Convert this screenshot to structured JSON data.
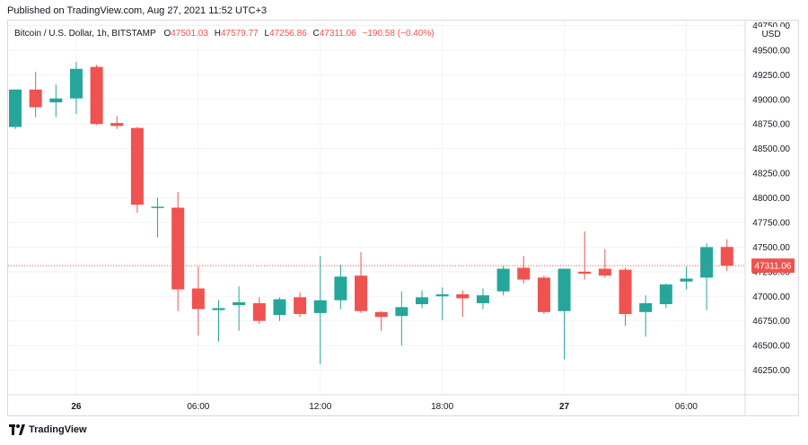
{
  "header": {
    "published": "Published on TradingView.com, Aug 27, 2021 11:52 UTC+3"
  },
  "legend": {
    "symbol": "Bitcoin / U.S. Dollar, 1h, BITSTAMP",
    "o_label": "O",
    "o_value": "47501.03",
    "h_label": "H",
    "h_value": "47579.77",
    "l_label": "L",
    "l_value": "47256.86",
    "c_label": "C",
    "c_value": "47311.06",
    "change": "−190.58 (−0.40%)"
  },
  "footer": {
    "brand": "TradingView"
  },
  "colors": {
    "up": "#26a69a",
    "down": "#ef5350",
    "grid": "#f0f3fa",
    "price_line": "#ef5350"
  },
  "chart_data": {
    "type": "candlestick",
    "currency_label": "USD",
    "ylim": [
      46000,
      49800
    ],
    "y_ticks": [
      "46250.00",
      "46500.00",
      "46750.00",
      "47000.00",
      "47250.00",
      "47500.00",
      "47750.00",
      "48000.00",
      "48250.00",
      "48500.00",
      "48750.00",
      "49000.00",
      "49250.00",
      "49500.00",
      "49750.00"
    ],
    "x_ticks": [
      {
        "label": "26",
        "index": 3,
        "bold": true
      },
      {
        "label": "06:00",
        "index": 9,
        "bold": false
      },
      {
        "label": "12:00",
        "index": 15,
        "bold": false
      },
      {
        "label": "18:00",
        "index": 21,
        "bold": false
      },
      {
        "label": "27",
        "index": 27,
        "bold": true
      },
      {
        "label": "06:00",
        "index": 33,
        "bold": false
      }
    ],
    "last_price": 47311.06,
    "last_price_label": "47311.06",
    "candles": [
      {
        "o": 48720,
        "h": 49100,
        "l": 48700,
        "c": 49100
      },
      {
        "o": 49100,
        "h": 49280,
        "l": 48820,
        "c": 48920
      },
      {
        "o": 48970,
        "h": 49150,
        "l": 48820,
        "c": 49010
      },
      {
        "o": 49010,
        "h": 49380,
        "l": 48850,
        "c": 49310
      },
      {
        "o": 49330,
        "h": 49350,
        "l": 48740,
        "c": 48750
      },
      {
        "o": 48760,
        "h": 48830,
        "l": 48700,
        "c": 48730
      },
      {
        "o": 48710,
        "h": 48720,
        "l": 47850,
        "c": 47930
      },
      {
        "o": 47900,
        "h": 48000,
        "l": 47600,
        "c": 47910
      },
      {
        "o": 47900,
        "h": 48060,
        "l": 46850,
        "c": 47070
      },
      {
        "o": 47080,
        "h": 47300,
        "l": 46600,
        "c": 46870
      },
      {
        "o": 46860,
        "h": 46960,
        "l": 46540,
        "c": 46880
      },
      {
        "o": 46910,
        "h": 47100,
        "l": 46650,
        "c": 46940
      },
      {
        "o": 46930,
        "h": 46990,
        "l": 46720,
        "c": 46750
      },
      {
        "o": 46810,
        "h": 46990,
        "l": 46750,
        "c": 46970
      },
      {
        "o": 46990,
        "h": 47040,
        "l": 46790,
        "c": 46820
      },
      {
        "o": 46830,
        "h": 47410,
        "l": 46310,
        "c": 46960
      },
      {
        "o": 46960,
        "h": 47320,
        "l": 46870,
        "c": 47200
      },
      {
        "o": 47210,
        "h": 47450,
        "l": 46830,
        "c": 46850
      },
      {
        "o": 46840,
        "h": 46850,
        "l": 46650,
        "c": 46790
      },
      {
        "o": 46800,
        "h": 47050,
        "l": 46500,
        "c": 46890
      },
      {
        "o": 46920,
        "h": 47060,
        "l": 46880,
        "c": 46990
      },
      {
        "o": 47000,
        "h": 47090,
        "l": 46760,
        "c": 47020
      },
      {
        "o": 47020,
        "h": 47060,
        "l": 46790,
        "c": 46980
      },
      {
        "o": 46930,
        "h": 47080,
        "l": 46870,
        "c": 47010
      },
      {
        "o": 47050,
        "h": 47310,
        "l": 47010,
        "c": 47280
      },
      {
        "o": 47290,
        "h": 47410,
        "l": 47130,
        "c": 47170
      },
      {
        "o": 47190,
        "h": 47210,
        "l": 46820,
        "c": 46840
      },
      {
        "o": 46850,
        "h": 47280,
        "l": 46360,
        "c": 47280
      },
      {
        "o": 47250,
        "h": 47660,
        "l": 47170,
        "c": 47230
      },
      {
        "o": 47280,
        "h": 47480,
        "l": 47190,
        "c": 47210
      },
      {
        "o": 47270,
        "h": 47290,
        "l": 46700,
        "c": 46820
      },
      {
        "o": 46840,
        "h": 47010,
        "l": 46590,
        "c": 46930
      },
      {
        "o": 46920,
        "h": 47130,
        "l": 46880,
        "c": 47120
      },
      {
        "o": 47150,
        "h": 47300,
        "l": 47070,
        "c": 47180
      },
      {
        "o": 47190,
        "h": 47540,
        "l": 46860,
        "c": 47500
      },
      {
        "o": 47501,
        "h": 47580,
        "l": 47257,
        "c": 47311
      }
    ]
  }
}
